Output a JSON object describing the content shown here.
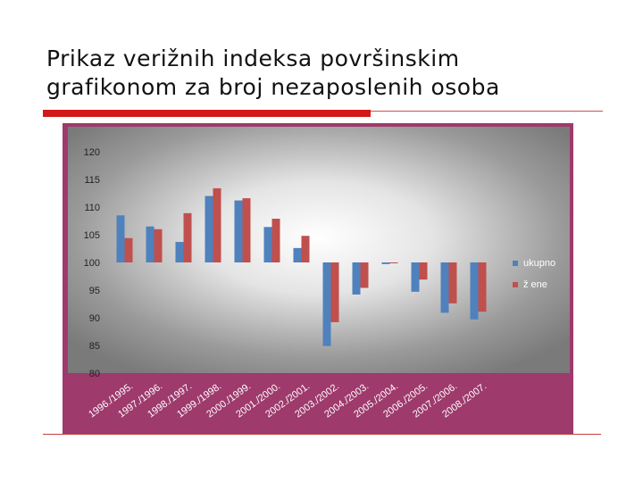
{
  "slide": {
    "title": "Prikaz verižnih indeksa površinskim\ngrafikonom za broj nezaposlenih osoba"
  },
  "colors": {
    "rule": "#d11919",
    "chart_bg": "#9e3a6c",
    "series_ukupno": "#4f81bd",
    "series_zene": "#c0504d"
  },
  "chart_data": {
    "type": "bar",
    "title": "",
    "xlabel": "",
    "ylabel": "",
    "ylim": [
      80,
      120
    ],
    "y_ticks": [
      80,
      85,
      90,
      95,
      100,
      105,
      110,
      115,
      120
    ],
    "baseline": 100,
    "grid": false,
    "legend_position": "right",
    "categories": [
      "1996./1995.",
      "1997./1996.",
      "1998./1997.",
      "1999./1998.",
      "2000./1999.",
      "2001./2000.",
      "2002./2001.",
      "2003./2002.",
      "2004./2003.",
      "2005./2004.",
      "2006./2005.",
      "2007./2006.",
      "2008./2007."
    ],
    "series": [
      {
        "name": "ukupno",
        "color": "#4f81bd",
        "values": [
          108.5,
          106.5,
          103.7,
          112,
          111.2,
          106.4,
          102.6,
          84.9,
          94.2,
          99.7,
          94.7,
          90.9,
          89.7
        ]
      },
      {
        "name": "ž ene",
        "color": "#c0504d",
        "values": [
          104.4,
          106,
          108.9,
          113.4,
          111.6,
          107.9,
          104.8,
          89.2,
          95.4,
          100,
          96.9,
          92.6,
          91.1
        ]
      }
    ]
  }
}
